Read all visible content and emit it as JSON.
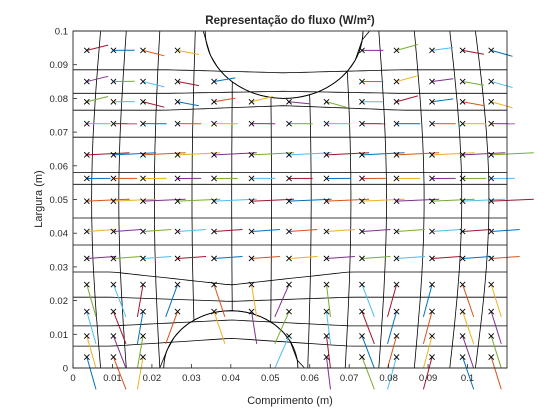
{
  "chart_data": {
    "type": "quiver",
    "title": "Representação do fluxo (W/m",
    "title_sup": "2",
    "title_close": ")",
    "xlabel": "Comprimento (m)",
    "ylabel": "Largura (m)",
    "xlim": [
      0,
      0.11
    ],
    "ylim": [
      0,
      0.1
    ],
    "xticks": [
      "0",
      "0.01",
      "0.02",
      "0.03",
      "0.04",
      "0.05",
      "0.06",
      "0.07",
      "0.08",
      "0.09",
      "0.1"
    ],
    "yticks": [
      "0",
      "0.01",
      "0.02",
      "0.03",
      "0.04",
      "0.05",
      "0.06",
      "0.07",
      "0.08",
      "0.09",
      "0.1"
    ],
    "grid": false,
    "element_centroid_marker": "x",
    "arrow_colors": [
      "#0072BD",
      "#D95319",
      "#EDB120",
      "#7E2F8E",
      "#77AC30",
      "#4DBEEE",
      "#A2142F"
    ],
    "mesh": {
      "x_columns": [
        0,
        0.007,
        0.0135,
        0.022,
        0.031,
        0.0405,
        0.05,
        0.0595,
        0.069,
        0.0775,
        0.0865,
        0.0955,
        0.102,
        0.11
      ],
      "y_rows": [
        0,
        0.0065,
        0.0125,
        0.021,
        0.0285,
        0.0365,
        0.0445,
        0.0545,
        0.058,
        0.0685,
        0.0765,
        0.0815,
        0.0885,
        0.1
      ],
      "bottom_arc": {
        "center_x": 0.04,
        "radius": 0.017,
        "y_top": 0.0175
      },
      "top_arc": {
        "center_x": 0.0535,
        "radius": 0.02,
        "y_bottom": 0.0855
      }
    },
    "flux_rows": [
      {
        "y": 0.0635,
        "dx": 0.0018,
        "dy": 0.0001
      },
      {
        "y": 0.0503,
        "dx": 0.0018,
        "dy": 0.0001
      },
      {
        "y": 0.0368,
        "dx": 0.0012,
        "dy": 0.0001
      }
    ]
  }
}
